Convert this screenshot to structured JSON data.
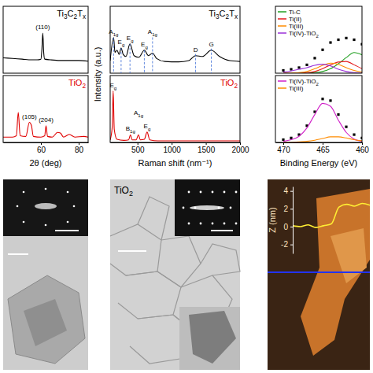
{
  "chart_data": [
    {
      "type": "line",
      "x": [
        40,
        45,
        50,
        55,
        58,
        60,
        60.5,
        61,
        61.5,
        62,
        65,
        70,
        75,
        80,
        85
      ],
      "series": [
        {
          "name": "Ti3C2Tx",
          "color": "#000000",
          "values": [
            0.23,
            0.22,
            0.21,
            0.2,
            0.2,
            0.21,
            0.35,
            0.6,
            0.3,
            0.21,
            0.2,
            0.19,
            0.19,
            0.19,
            0.18
          ]
        }
      ],
      "xlim": [
        40,
        85
      ],
      "ylim": [
        0,
        1
      ],
      "tick_labels": false,
      "legend": "top-right",
      "annotations": [
        {
          "text": "(110)",
          "x": 61
        }
      ]
    },
    {
      "type": "line",
      "x": [
        40,
        45,
        47,
        48,
        49,
        52,
        53.9,
        55,
        56,
        60,
        62,
        62.7,
        63.5,
        66,
        68.8,
        70.3,
        72,
        75,
        78,
        82.7,
        85
      ],
      "series": [
        {
          "name": "TiO2",
          "color": "#e00000",
          "values": [
            0.08,
            0.08,
            0.1,
            0.45,
            0.1,
            0.09,
            0.3,
            0.25,
            0.09,
            0.08,
            0.1,
            0.25,
            0.09,
            0.08,
            0.15,
            0.14,
            0.08,
            0.12,
            0.08,
            0.09,
            0.08
          ]
        }
      ],
      "xlim": [
        40,
        85
      ],
      "xticks": [
        60,
        80
      ],
      "ylim": [
        0,
        1
      ],
      "tick_labels": "x",
      "legend": "top-right",
      "x_label": "2θ (deg)",
      "annotations": [
        {
          "text": "(105)",
          "x": 53.9
        },
        {
          "text": "(204)",
          "x": 62.7
        }
      ]
    },
    {
      "type": "line",
      "x": [
        100,
        150,
        170,
        200,
        230,
        260,
        290,
        330,
        390,
        450,
        520,
        600,
        660,
        720,
        780,
        900,
        1100,
        1250,
        1350,
        1450,
        1580,
        1700,
        1850,
        2000
      ],
      "series": [
        {
          "name": "Ti3C2Tx",
          "color": "#000000",
          "values": [
            0.3,
            0.85,
            0.5,
            0.55,
            0.45,
            0.6,
            0.45,
            0.4,
            0.7,
            0.42,
            0.38,
            0.55,
            0.42,
            0.48,
            0.35,
            0.28,
            0.27,
            0.3,
            0.42,
            0.4,
            0.55,
            0.4,
            0.3,
            0.28
          ]
        }
      ],
      "xlim": [
        100,
        2000
      ],
      "ylim": [
        0,
        1.6
      ],
      "tick_labels": false,
      "legend": "top-right",
      "y_label": "Intensity (a.u.)",
      "annotations": [
        {
          "text": "A1g",
          "x": 150
        },
        {
          "text": "Eg",
          "x": 260
        },
        {
          "text": "Eg",
          "x": 390
        },
        {
          "text": "Eg",
          "x": 600
        },
        {
          "text": "A1g",
          "x": 720
        },
        {
          "text": "D",
          "x": 1350
        },
        {
          "text": "G",
          "x": 1580
        }
      ]
    },
    {
      "type": "line",
      "x": [
        100,
        130,
        144,
        160,
        200,
        300,
        370,
        397,
        420,
        480,
        515,
        540,
        600,
        640,
        680,
        800,
        1000,
        1500,
        2000
      ],
      "series": [
        {
          "name": "TiO2",
          "color": "#e00000",
          "values": [
            0.05,
            0.3,
            1.0,
            0.25,
            0.06,
            0.04,
            0.05,
            0.15,
            0.05,
            0.05,
            0.15,
            0.05,
            0.06,
            0.2,
            0.05,
            0.03,
            0.03,
            0.03,
            0.03
          ]
        }
      ],
      "xlim": [
        100,
        2000
      ],
      "xticks": [
        500,
        1000,
        1500,
        2000
      ],
      "ylim": [
        0,
        1.3
      ],
      "tick_labels": "x",
      "legend": "top-right",
      "x_label": "Raman shift (nm⁻¹)",
      "annotations": [
        {
          "text": "Eg",
          "x": 144
        },
        {
          "text": "B1g",
          "x": 397
        },
        {
          "text": "A1g",
          "x": 515
        },
        {
          "text": "Eg",
          "x": 640
        }
      ]
    },
    {
      "type": "line",
      "x": [
        470,
        469,
        468,
        467,
        466,
        465,
        464,
        463,
        462,
        461,
        460
      ],
      "series": [
        {
          "type": "scatter",
          "marker": "square",
          "color": "#000000",
          "values": [
            0.05,
            0.07,
            0.1,
            0.15,
            0.27,
            0.42,
            0.55,
            0.6,
            0.63,
            0.6,
            0.52
          ]
        },
        {
          "name": "Ti-C",
          "color": "#22a022",
          "values": [
            0,
            0,
            0,
            0,
            0.01,
            0.03,
            0.08,
            0.17,
            0.28,
            0.37,
            0.33
          ]
        },
        {
          "name": "Ti(II)",
          "color": "#e41a1c",
          "values": [
            0,
            0,
            0,
            0.01,
            0.03,
            0.08,
            0.15,
            0.2,
            0.21,
            0.15,
            0.08
          ]
        },
        {
          "name": "Ti(III)",
          "color": "#ff8c00",
          "values": [
            0,
            0,
            0.01,
            0.03,
            0.08,
            0.14,
            0.18,
            0.16,
            0.1,
            0.05,
            0.02
          ]
        },
        {
          "name": "Ti(IV)-TiO2",
          "color": "#9b30d9",
          "values": [
            0.02,
            0.04,
            0.07,
            0.1,
            0.14,
            0.16,
            0.13,
            0.07,
            0.03,
            0.01,
            0
          ]
        }
      ],
      "xlim": [
        471,
        460
      ],
      "ylim": [
        0,
        1.2
      ],
      "tick_labels": false,
      "legend": "top-left"
    },
    {
      "type": "line",
      "x": [
        470,
        469,
        468,
        467,
        466,
        465,
        464,
        463,
        462,
        461,
        460
      ],
      "series": [
        {
          "type": "scatter",
          "marker": "square",
          "color": "#000000",
          "values": [
            0.05,
            0.08,
            0.14,
            0.3,
            0.55,
            0.78,
            0.75,
            0.5,
            0.28,
            0.14,
            0.08
          ]
        },
        {
          "name": "Ti(IV)-TiO2",
          "color": "#d020c8",
          "values": [
            0.02,
            0.05,
            0.11,
            0.26,
            0.5,
            0.7,
            0.65,
            0.4,
            0.18,
            0.06,
            0.02
          ]
        },
        {
          "name": "Ti(III)",
          "color": "#ff8c00",
          "values": [
            0,
            0,
            0.01,
            0.02,
            0.04,
            0.07,
            0.1,
            0.1,
            0.08,
            0.05,
            0.03
          ]
        }
      ],
      "xlim": [
        471,
        460
      ],
      "xticks": [
        470,
        465,
        460
      ],
      "ylim": [
        0,
        1.2
      ],
      "tick_labels": "x",
      "legend": "top-left",
      "x_label": "Binding Energy (eV)"
    },
    {
      "type": "line",
      "x": [
        0,
        1,
        2,
        3,
        4,
        5,
        6,
        7,
        8,
        9,
        10
      ],
      "series": [
        {
          "color": "#ffee33",
          "values": [
            0.1,
            0,
            0.2,
            -0.1,
            0.1,
            0.3,
            2.2,
            2.5,
            2.3,
            2.6,
            2.4
          ]
        }
      ],
      "xlim": [
        0,
        10
      ],
      "ylim": [
        -3,
        4.5
      ],
      "yticks": [
        -2,
        0,
        2,
        4
      ],
      "tick_labels": "y",
      "y_label": "Z (nm)"
    }
  ],
  "images": {
    "tem_label": "TiO2"
  }
}
